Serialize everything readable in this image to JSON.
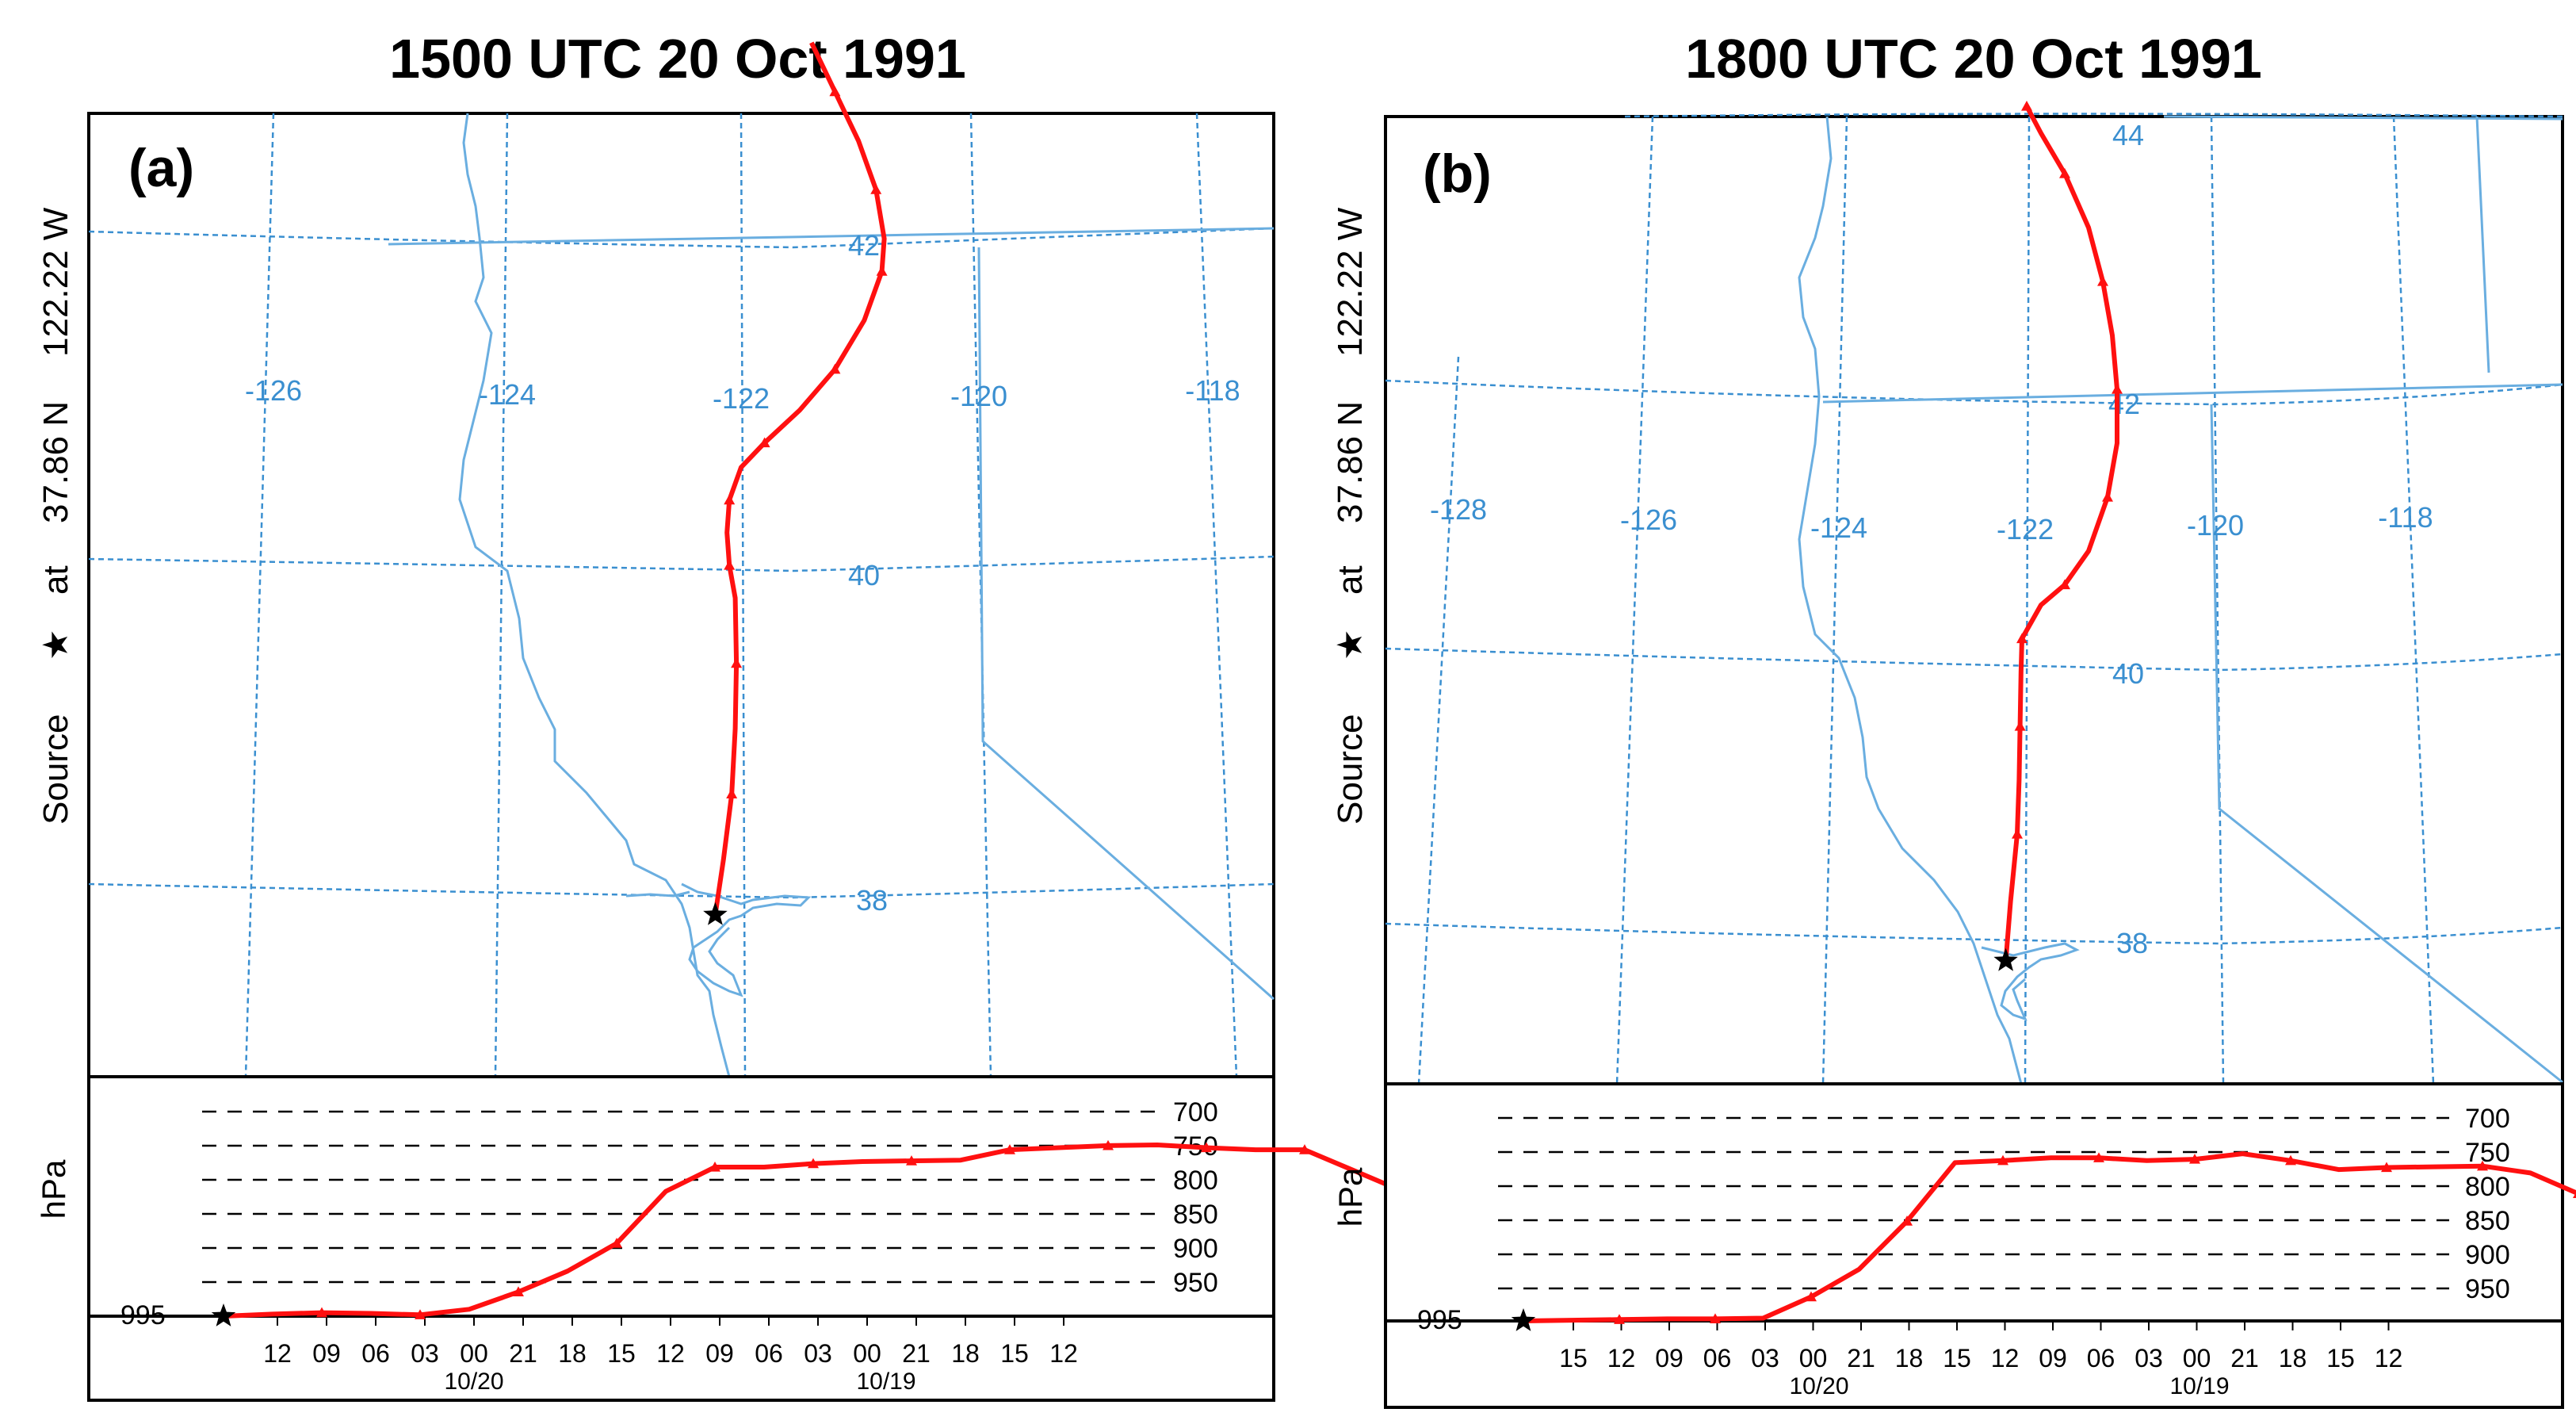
{
  "chart_data": [
    {
      "type": "line",
      "panel": "(a)",
      "title": "1500 UTC 20 Oct 1991",
      "source_label": "Source ★ at 37.86 N 122.22 W",
      "source_label_parts": [
        "Source",
        "★",
        "at",
        "37.86 N",
        "122.22 W"
      ],
      "map_lon_labels": [
        "-126",
        "-124",
        "-122",
        "-120",
        "-118"
      ],
      "map_lat_labels": [
        "42",
        "40",
        "38"
      ],
      "trajectory": {
        "lon": [
          -122.22,
          -122.15,
          -122.08,
          -122.05,
          -122.04,
          -122.05,
          -122.1,
          -122.12,
          -122.1,
          -122.0,
          -121.8,
          -121.5,
          -121.2,
          -120.95,
          -120.8,
          -120.78,
          -120.85,
          -121.0,
          -121.2,
          -121.4
        ],
        "lat": [
          37.86,
          38.2,
          38.6,
          39.0,
          39.4,
          39.8,
          40.0,
          40.2,
          40.4,
          40.6,
          40.75,
          40.95,
          41.2,
          41.5,
          41.8,
          42.0,
          42.3,
          42.6,
          42.9,
          43.2
        ]
      },
      "time_ticks": [
        "12",
        "09",
        "06",
        "03",
        "00",
        "21",
        "18",
        "15",
        "12",
        "09",
        "06",
        "03",
        "00",
        "21",
        "18",
        "15",
        "12"
      ],
      "date_labels": [
        "10/20",
        "10/19"
      ],
      "pressure_levels": [
        "700",
        "750",
        "800",
        "850",
        "900",
        "950"
      ],
      "start_pressure_label": "995",
      "ylabel": "hPa",
      "ylim": [
        995,
        700
      ],
      "pressure_series": {
        "hours_back": [
          0,
          3,
          6,
          9,
          12,
          15,
          18,
          21,
          24,
          27,
          30,
          33,
          36,
          39,
          42,
          45,
          48,
          51,
          54,
          57,
          60,
          63,
          66,
          69,
          72,
          75,
          78,
          81
        ],
        "pressure": [
          995,
          992,
          990,
          991,
          993,
          985,
          960,
          930,
          890,
          815,
          780,
          780,
          775,
          772,
          771,
          770,
          755,
          752,
          749,
          748,
          752,
          755,
          755,
          785,
          815,
          818,
          812,
          805
        ]
      }
    },
    {
      "type": "line",
      "panel": "(b)",
      "title": "1800 UTC 20 Oct 1991",
      "source_label": "Source ★ at 37.86 N 122.22 W",
      "source_label_parts": [
        "Source",
        "★",
        "at",
        "37.86 N",
        "122.22 W"
      ],
      "map_lon_labels": [
        "-128",
        "-126",
        "-124",
        "-122",
        "-120",
        "-118"
      ],
      "map_lat_labels": [
        "44",
        "42",
        "40",
        "38"
      ],
      "trajectory": {
        "lon": [
          -122.22,
          -122.17,
          -122.1,
          -122.08,
          -122.07,
          -122.06,
          -122.05,
          -121.85,
          -121.6,
          -121.35,
          -121.15,
          -121.05,
          -121.05,
          -121.1,
          -121.2,
          -121.35,
          -121.6,
          -121.85,
          -122.0
        ],
        "lat": [
          37.86,
          38.3,
          38.8,
          39.2,
          39.6,
          40.0,
          40.25,
          40.5,
          40.65,
          40.9,
          41.3,
          41.7,
          42.1,
          42.5,
          42.9,
          43.3,
          43.7,
          44.0,
          44.2
        ]
      },
      "time_ticks": [
        "15",
        "12",
        "09",
        "06",
        "03",
        "00",
        "21",
        "18",
        "15",
        "12",
        "09",
        "06",
        "03",
        "00",
        "21",
        "18",
        "15",
        "12"
      ],
      "date_labels": [
        "10/20",
        "10/19"
      ],
      "pressure_levels": [
        "700",
        "750",
        "800",
        "850",
        "900",
        "950"
      ],
      "start_pressure_label": "995",
      "ylabel": "hPa",
      "ylim": [
        995,
        700
      ],
      "pressure_series": {
        "hours_back": [
          0,
          3,
          6,
          9,
          12,
          15,
          18,
          21,
          24,
          27,
          30,
          33,
          36,
          39,
          42,
          45,
          48,
          51,
          54,
          57,
          60,
          63,
          66,
          69,
          72,
          75,
          78,
          81
        ],
        "pressure": [
          995,
          994,
          993,
          992,
          992,
          991,
          960,
          920,
          850,
          765,
          762,
          758,
          758,
          762,
          760,
          752,
          762,
          775,
          772,
          771,
          770,
          780,
          810,
          845,
          855,
          850,
          848,
          845
        ]
      }
    }
  ],
  "colors": {
    "trajectory": "#ff1010",
    "map_grid": "#3a8fd0",
    "map_lines": "#6aaee0",
    "frame": "#000000"
  }
}
